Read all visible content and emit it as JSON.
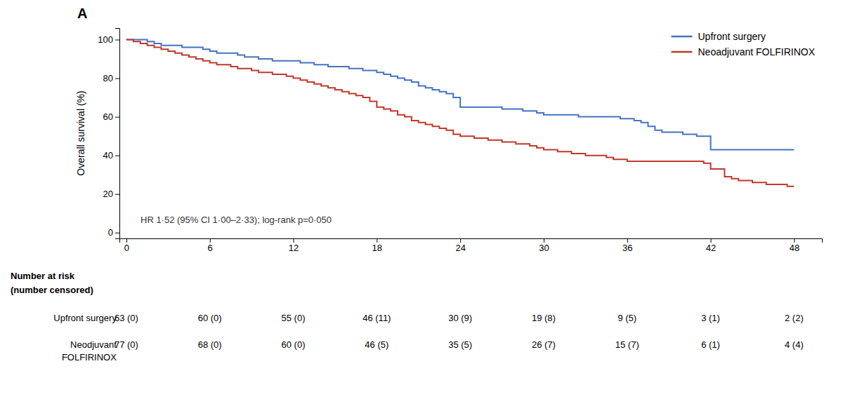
{
  "chart_data": {
    "type": "line",
    "title": "A",
    "ylabel": "Overall survival (%)",
    "annotation": "HR 1·52 (95% CI 1·00–2·33); log-rank p=0·050",
    "xlim": [
      -0.5,
      50
    ],
    "ylim": [
      -3,
      106
    ],
    "xticks": [
      0,
      6,
      12,
      18,
      24,
      30,
      36,
      42,
      48
    ],
    "yticks": [
      0,
      20,
      40,
      60,
      80,
      100
    ],
    "grid": false,
    "legend": "upper right",
    "x": [
      0,
      0.5,
      1.0,
      1.5,
      2.0,
      2.5,
      3.0,
      3.5,
      4.0,
      4.5,
      5.0,
      5.5,
      6.0,
      6.5,
      7.0,
      7.5,
      8.0,
      8.5,
      9.0,
      9.5,
      10.0,
      10.5,
      11.0,
      11.5,
      12.0,
      12.5,
      13.0,
      13.5,
      14.0,
      14.5,
      15.0,
      15.5,
      16.0,
      16.5,
      17.0,
      17.5,
      18.0,
      18.5,
      19.0,
      19.5,
      20.0,
      20.5,
      21.0,
      21.5,
      22.0,
      22.5,
      23.0,
      23.5,
      24.0,
      24.5,
      25.0,
      25.5,
      26.0,
      26.5,
      27.0,
      27.5,
      28.0,
      28.5,
      29.0,
      29.5,
      30.0,
      30.5,
      31.0,
      31.5,
      32.0,
      32.5,
      33.0,
      33.5,
      34.0,
      34.5,
      35.0,
      35.5,
      36.0,
      36.5,
      37.0,
      37.5,
      38.0,
      38.5,
      39.0,
      39.5,
      40.0,
      40.5,
      41.0,
      41.5,
      42.0,
      42.5,
      43.0,
      43.5,
      44.0,
      44.5,
      45.0,
      45.5,
      46.0,
      46.5,
      47.0,
      47.5,
      48.0
    ],
    "series": [
      {
        "name": "Upfront surgery",
        "color": "#4472C4",
        "line_style": "step",
        "values": [
          100,
          100,
          100,
          99,
          98,
          97,
          97,
          97,
          96,
          96,
          96,
          95,
          94,
          93,
          93,
          93,
          92,
          91,
          91,
          90,
          90,
          89,
          89,
          89,
          89,
          88,
          88,
          87,
          87,
          86,
          86,
          86,
          85,
          85,
          84,
          84,
          83,
          82,
          81,
          80,
          79,
          78,
          76,
          75,
          74,
          73,
          72,
          70,
          65,
          65,
          65,
          65,
          65,
          65,
          64,
          64,
          64,
          63,
          63,
          62,
          61,
          61,
          61,
          61,
          61,
          60,
          60,
          60,
          60,
          60,
          60,
          59,
          59,
          58,
          57,
          55,
          53,
          52,
          52,
          52,
          51,
          51,
          50,
          50,
          43,
          43,
          43,
          43,
          43,
          43,
          43,
          43,
          43,
          43,
          43,
          43,
          43
        ]
      },
      {
        "name": "Neoadjuvant FOLFIRINOX",
        "color": "#C0392B",
        "line_style": "step",
        "values": [
          100,
          99,
          98,
          97,
          96,
          95,
          94,
          93,
          92,
          91,
          90,
          89,
          88,
          87,
          87,
          86,
          85,
          85,
          84,
          83,
          83,
          82,
          82,
          81,
          80,
          79,
          78,
          77,
          76,
          75,
          74,
          73,
          72,
          71,
          70,
          68,
          65,
          64,
          63,
          61,
          60,
          58,
          57,
          56,
          55,
          54,
          53,
          51,
          50,
          50,
          49,
          49,
          48,
          48,
          47,
          47,
          46,
          46,
          45,
          44,
          43,
          43,
          42,
          42,
          41,
          41,
          40,
          40,
          40,
          39,
          38,
          38,
          37,
          37,
          37,
          37,
          37,
          37,
          37,
          37,
          37,
          37,
          37,
          36,
          33,
          33,
          29,
          28,
          27,
          27,
          26,
          26,
          25,
          25,
          25,
          24,
          24
        ]
      }
    ],
    "risk_table": {
      "headers": [
        "Number at risk",
        "(number censored)"
      ],
      "x": [
        0,
        6,
        12,
        18,
        24,
        30,
        36,
        42,
        48
      ],
      "rows": [
        {
          "label": [
            "Upfront surgery"
          ],
          "values": [
            "63 (0)",
            "60 (0)",
            "55 (0)",
            "46 (11)",
            "30 (9)",
            "19 (8)",
            "9 (5)",
            "3 (1)",
            "2 (2)"
          ]
        },
        {
          "label": [
            "Neodjuvant",
            "FOLFIRINOX"
          ],
          "values": [
            "77 (0)",
            "68 (0)",
            "60 (0)",
            "46 (5)",
            "35 (5)",
            "26 (7)",
            "15 (7)",
            "6 (1)",
            "4 (4)"
          ]
        }
      ]
    }
  }
}
